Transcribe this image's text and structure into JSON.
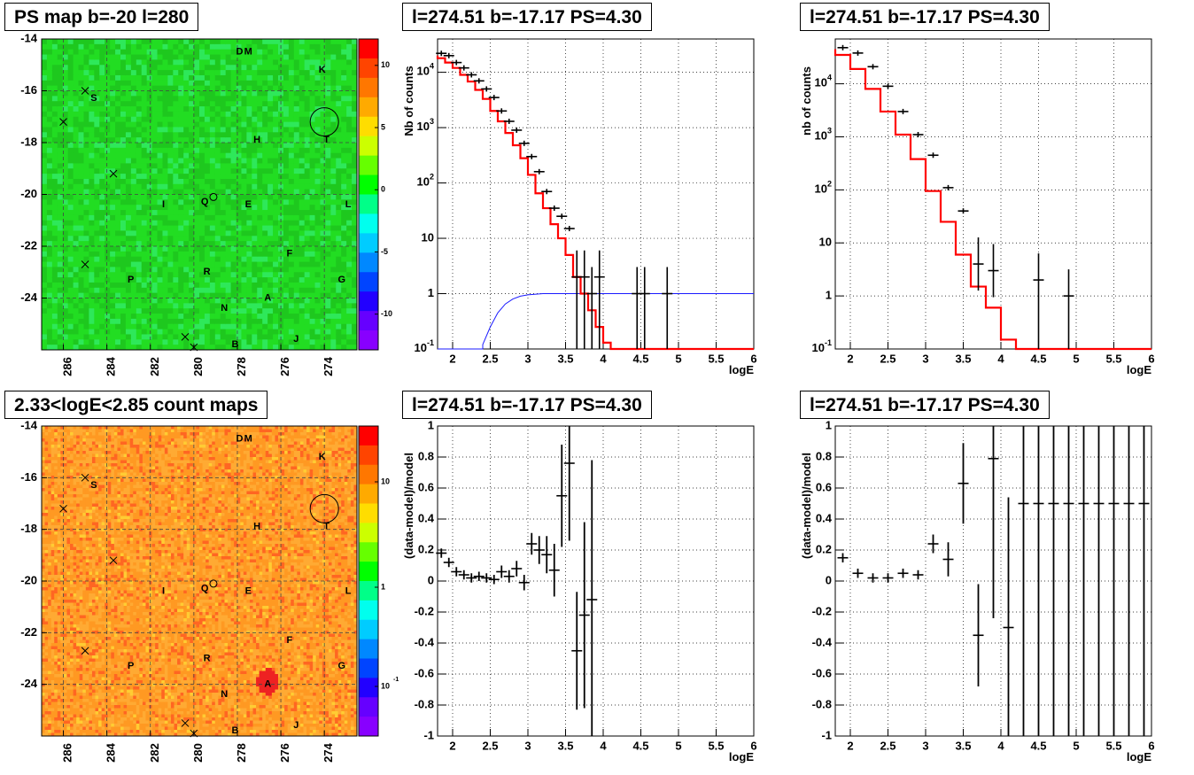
{
  "panels": {
    "map1_title": "PS map b=-20 l=280",
    "spec1_title": "l=274.51 b=-17.17 PS=4.30",
    "spec2_title": "l=274.51 b=-17.17 PS=4.30",
    "map2_title": "2.33<logE<2.85 count maps",
    "res1_title": "l=274.51 b=-17.17 PS=4.30",
    "res2_title": "l=274.51 b=-17.17 PS=4.30"
  },
  "maps": {
    "x_ticks": [
      "286",
      "284",
      "282",
      "280",
      "278",
      "276",
      "274"
    ],
    "y_ticks": [
      "-14",
      "-16",
      "-18",
      "-20",
      "-22",
      "-24"
    ],
    "ps_colorbar_ticks": [
      "10",
      "5",
      "0",
      "-5",
      "-10"
    ],
    "count_colorbar_ticks": [
      "10",
      "1",
      "10",
      "-1"
    ],
    "source_labels": [
      {
        "t": "D",
        "l": 277.9,
        "b": -14.5
      },
      {
        "t": "M",
        "l": 277.5,
        "b": -14.5
      },
      {
        "t": "K",
        "l": 274.1,
        "b": -15.2
      },
      {
        "t": "S",
        "l": 284.6,
        "b": -16.3
      },
      {
        "t": "H",
        "l": 277.1,
        "b": -17.9
      },
      {
        "t": "T",
        "l": 273.9,
        "b": -17.9
      },
      {
        "t": "I",
        "l": 281.4,
        "b": -20.4
      },
      {
        "t": "Q",
        "l": 279.5,
        "b": -20.3
      },
      {
        "t": "E",
        "l": 277.5,
        "b": -20.4
      },
      {
        "t": "L",
        "l": 272.9,
        "b": -20.4
      },
      {
        "t": "F",
        "l": 275.6,
        "b": -22.3
      },
      {
        "t": "R",
        "l": 279.4,
        "b": -23.0
      },
      {
        "t": "P",
        "l": 282.9,
        "b": -23.3
      },
      {
        "t": "G",
        "l": 273.2,
        "b": -23.3
      },
      {
        "t": "A",
        "l": 276.6,
        "b": -24.0
      },
      {
        "t": "N",
        "l": 278.6,
        "b": -24.4
      },
      {
        "t": "J",
        "l": 275.3,
        "b": -25.6
      },
      {
        "t": "B",
        "l": 278.1,
        "b": -25.8
      }
    ],
    "cross_marks": [
      {
        "l": 285.0,
        "b": -16.0
      },
      {
        "l": 286.0,
        "b": -17.2
      },
      {
        "l": 283.7,
        "b": -19.2
      },
      {
        "l": 285.0,
        "b": -22.7
      },
      {
        "l": 280.4,
        "b": -25.5
      },
      {
        "l": 280.0,
        "b": -25.9
      }
    ],
    "circle_marks": [
      {
        "l": 274.0,
        "b": -17.2
      },
      {
        "l": 279.1,
        "b": -20.1
      }
    ]
  },
  "chart_data": [
    {
      "type": "line",
      "log_y": true,
      "xlabel": "logE",
      "ylabel": "Nb of counts",
      "xlim": [
        1.8,
        6
      ],
      "ylim": [
        0.1,
        40000
      ],
      "x_ticks": [
        "2",
        "2.5",
        "3",
        "3.5",
        "4",
        "4.5",
        "5",
        "5.5",
        "6"
      ],
      "y_ticks": [
        "10^4",
        "10^3",
        "10^2",
        "10",
        "1",
        "10^-1"
      ],
      "data_points": [
        {
          "x": 1.85,
          "y": 22000
        },
        {
          "x": 1.95,
          "y": 20000
        },
        {
          "x": 2.05,
          "y": 15000
        },
        {
          "x": 2.15,
          "y": 12000
        },
        {
          "x": 2.25,
          "y": 9000
        },
        {
          "x": 2.35,
          "y": 7000
        },
        {
          "x": 2.45,
          "y": 5000
        },
        {
          "x": 2.55,
          "y": 3500
        },
        {
          "x": 2.65,
          "y": 2000
        },
        {
          "x": 2.75,
          "y": 1300
        },
        {
          "x": 2.85,
          "y": 900
        },
        {
          "x": 2.95,
          "y": 520
        },
        {
          "x": 3.05,
          "y": 300
        },
        {
          "x": 3.15,
          "y": 160
        },
        {
          "x": 3.25,
          "y": 70
        },
        {
          "x": 3.35,
          "y": 35
        },
        {
          "x": 3.45,
          "y": 25
        },
        {
          "x": 3.55,
          "y": 15
        },
        {
          "x": 3.65,
          "y": 2
        },
        {
          "x": 3.75,
          "y": 2
        },
        {
          "x": 3.85,
          "y": 1
        },
        {
          "x": 3.95,
          "y": 2
        },
        {
          "x": 4.45,
          "y": 1
        },
        {
          "x": 4.55,
          "y": 1
        },
        {
          "x": 4.85,
          "y": 1
        }
      ],
      "model_red": [
        {
          "x": 1.8,
          "y": 20000
        },
        {
          "x": 1.9,
          "y": 18000
        },
        {
          "x": 2.0,
          "y": 15000
        },
        {
          "x": 2.1,
          "y": 12000
        },
        {
          "x": 2.2,
          "y": 9000
        },
        {
          "x": 2.3,
          "y": 6800
        },
        {
          "x": 2.4,
          "y": 4800
        },
        {
          "x": 2.5,
          "y": 3300
        },
        {
          "x": 2.6,
          "y": 2000
        },
        {
          "x": 2.7,
          "y": 1300
        },
        {
          "x": 2.8,
          "y": 800
        },
        {
          "x": 2.9,
          "y": 480
        },
        {
          "x": 3.0,
          "y": 280
        },
        {
          "x": 3.1,
          "y": 140
        },
        {
          "x": 3.2,
          "y": 65
        },
        {
          "x": 3.3,
          "y": 35
        },
        {
          "x": 3.4,
          "y": 18
        },
        {
          "x": 3.5,
          "y": 10
        },
        {
          "x": 3.6,
          "y": 5
        },
        {
          "x": 3.7,
          "y": 2
        },
        {
          "x": 3.8,
          "y": 1
        },
        {
          "x": 3.9,
          "y": 0.5
        },
        {
          "x": 4.0,
          "y": 0.25
        },
        {
          "x": 4.1,
          "y": 0.13
        },
        {
          "x": 4.2,
          "y": 0.05
        },
        {
          "x": 6.0,
          "y": 0.05
        }
      ],
      "model_blue": [
        {
          "x": 1.8,
          "y": 0.05
        },
        {
          "x": 2.4,
          "y": 0.05
        },
        {
          "x": 2.4,
          "y": 0.12
        },
        {
          "x": 2.5,
          "y": 0.25
        },
        {
          "x": 2.6,
          "y": 0.45
        },
        {
          "x": 2.7,
          "y": 0.65
        },
        {
          "x": 2.8,
          "y": 0.8
        },
        {
          "x": 2.9,
          "y": 0.9
        },
        {
          "x": 3.0,
          "y": 0.95
        },
        {
          "x": 3.2,
          "y": 1.0
        },
        {
          "x": 6.0,
          "y": 1.0
        }
      ]
    },
    {
      "type": "line",
      "log_y": true,
      "xlabel": "logE",
      "ylabel": "nb of counts",
      "xlim": [
        1.8,
        6
      ],
      "ylim": [
        0.1,
        70000
      ],
      "x_ticks": [
        "2",
        "2.5",
        "3",
        "3.5",
        "4",
        "4.5",
        "5",
        "5.5",
        "6"
      ],
      "y_ticks": [
        "10^4",
        "10^3",
        "10^2",
        "10",
        "1",
        "10^-1"
      ],
      "data_points": [
        {
          "x": 1.9,
          "y": 48000
        },
        {
          "x": 2.1,
          "y": 38000
        },
        {
          "x": 2.3,
          "y": 21000
        },
        {
          "x": 2.5,
          "y": 9000
        },
        {
          "x": 2.7,
          "y": 3000
        },
        {
          "x": 2.9,
          "y": 1100
        },
        {
          "x": 3.1,
          "y": 450
        },
        {
          "x": 3.3,
          "y": 110
        },
        {
          "x": 3.5,
          "y": 40
        },
        {
          "x": 3.7,
          "y": 4
        },
        {
          "x": 3.9,
          "y": 3
        },
        {
          "x": 4.5,
          "y": 2
        },
        {
          "x": 4.9,
          "y": 1
        }
      ],
      "model_red": [
        {
          "x": 1.8,
          "y": 45000
        },
        {
          "x": 2.0,
          "y": 35000
        },
        {
          "x": 2.2,
          "y": 19000
        },
        {
          "x": 2.4,
          "y": 8000
        },
        {
          "x": 2.6,
          "y": 3000
        },
        {
          "x": 2.8,
          "y": 1100
        },
        {
          "x": 3.0,
          "y": 380
        },
        {
          "x": 3.2,
          "y": 95
        },
        {
          "x": 3.4,
          "y": 25
        },
        {
          "x": 3.6,
          "y": 6
        },
        {
          "x": 3.8,
          "y": 1.5
        },
        {
          "x": 4.0,
          "y": 0.6
        },
        {
          "x": 4.2,
          "y": 0.15
        },
        {
          "x": 4.4,
          "y": 0.07
        },
        {
          "x": 6.0,
          "y": 0.07
        }
      ]
    },
    {
      "type": "scatter",
      "xlabel": "logE",
      "ylabel": "(data-model)/model",
      "xlim": [
        1.8,
        6
      ],
      "ylim": [
        -1,
        1
      ],
      "x_ticks": [
        "2",
        "2.5",
        "3",
        "3.5",
        "4",
        "4.5",
        "5",
        "5.5",
        "6"
      ],
      "y_ticks": [
        "1",
        "0.8",
        "0.6",
        "0.4",
        "0.2",
        "0",
        "-0.2",
        "-0.4",
        "-0.6",
        "-0.8",
        "-1"
      ],
      "points": [
        {
          "x": 1.85,
          "y": 0.18,
          "e": 0.03
        },
        {
          "x": 1.95,
          "y": 0.12,
          "e": 0.03
        },
        {
          "x": 2.05,
          "y": 0.06,
          "e": 0.03
        },
        {
          "x": 2.15,
          "y": 0.04,
          "e": 0.03
        },
        {
          "x": 2.25,
          "y": 0.02,
          "e": 0.03
        },
        {
          "x": 2.35,
          "y": 0.03,
          "e": 0.03
        },
        {
          "x": 2.45,
          "y": 0.02,
          "e": 0.03
        },
        {
          "x": 2.55,
          "y": 0.01,
          "e": 0.03
        },
        {
          "x": 2.65,
          "y": 0.06,
          "e": 0.04
        },
        {
          "x": 2.75,
          "y": 0.03,
          "e": 0.04
        },
        {
          "x": 2.85,
          "y": 0.08,
          "e": 0.05
        },
        {
          "x": 2.95,
          "y": -0.01,
          "e": 0.05
        },
        {
          "x": 3.05,
          "y": 0.24,
          "e": 0.07
        },
        {
          "x": 3.15,
          "y": 0.2,
          "e": 0.09
        },
        {
          "x": 3.25,
          "y": 0.17,
          "e": 0.12
        },
        {
          "x": 3.35,
          "y": 0.07,
          "e": 0.17
        },
        {
          "x": 3.45,
          "y": 0.55,
          "e": 0.33
        },
        {
          "x": 3.55,
          "y": 0.76,
          "e": 0.5
        },
        {
          "x": 3.65,
          "y": -0.45,
          "e": 0.38
        },
        {
          "x": 3.75,
          "y": -0.22,
          "e": 0.6
        },
        {
          "x": 3.85,
          "y": -0.12,
          "e": 0.9
        }
      ]
    },
    {
      "type": "scatter",
      "xlabel": "logE",
      "ylabel": "(data-model)/model",
      "xlim": [
        1.8,
        6
      ],
      "ylim": [
        -1,
        1
      ],
      "x_ticks": [
        "2",
        "2.5",
        "3",
        "3.5",
        "4",
        "4.5",
        "5",
        "5.5",
        "6"
      ],
      "y_ticks": [
        "1",
        "0.8",
        "0.6",
        "0.4",
        "0.2",
        "0",
        "-0.2",
        "-0.4",
        "-0.6",
        "-0.8",
        "-1"
      ],
      "points": [
        {
          "x": 1.9,
          "y": 0.15,
          "e": 0.03
        },
        {
          "x": 2.1,
          "y": 0.05,
          "e": 0.03
        },
        {
          "x": 2.3,
          "y": 0.02,
          "e": 0.03
        },
        {
          "x": 2.5,
          "y": 0.02,
          "e": 0.03
        },
        {
          "x": 2.7,
          "y": 0.05,
          "e": 0.03
        },
        {
          "x": 2.9,
          "y": 0.04,
          "e": 0.03
        },
        {
          "x": 3.1,
          "y": 0.24,
          "e": 0.06
        },
        {
          "x": 3.3,
          "y": 0.14,
          "e": 0.11
        },
        {
          "x": 3.5,
          "y": 0.63,
          "e": 0.26
        },
        {
          "x": 3.7,
          "y": -0.35,
          "e": 0.33
        },
        {
          "x": 3.9,
          "y": 0.79,
          "e": 1.03
        },
        {
          "x": 4.1,
          "y": -0.3,
          "e": 0.84
        },
        {
          "x": 4.3,
          "y": 0.5,
          "e": 1.8
        },
        {
          "x": 4.5,
          "y": 0.5,
          "e": 1.8
        },
        {
          "x": 4.7,
          "y": 0.5,
          "e": 1.8
        },
        {
          "x": 4.9,
          "y": 0.5,
          "e": 1.8
        },
        {
          "x": 5.1,
          "y": 0.5,
          "e": 1.8
        },
        {
          "x": 5.3,
          "y": 0.5,
          "e": 1.8
        },
        {
          "x": 5.5,
          "y": 0.5,
          "e": 1.8
        },
        {
          "x": 5.7,
          "y": 0.5,
          "e": 1.8
        },
        {
          "x": 5.9,
          "y": 0.5,
          "e": 1.8
        }
      ]
    }
  ]
}
